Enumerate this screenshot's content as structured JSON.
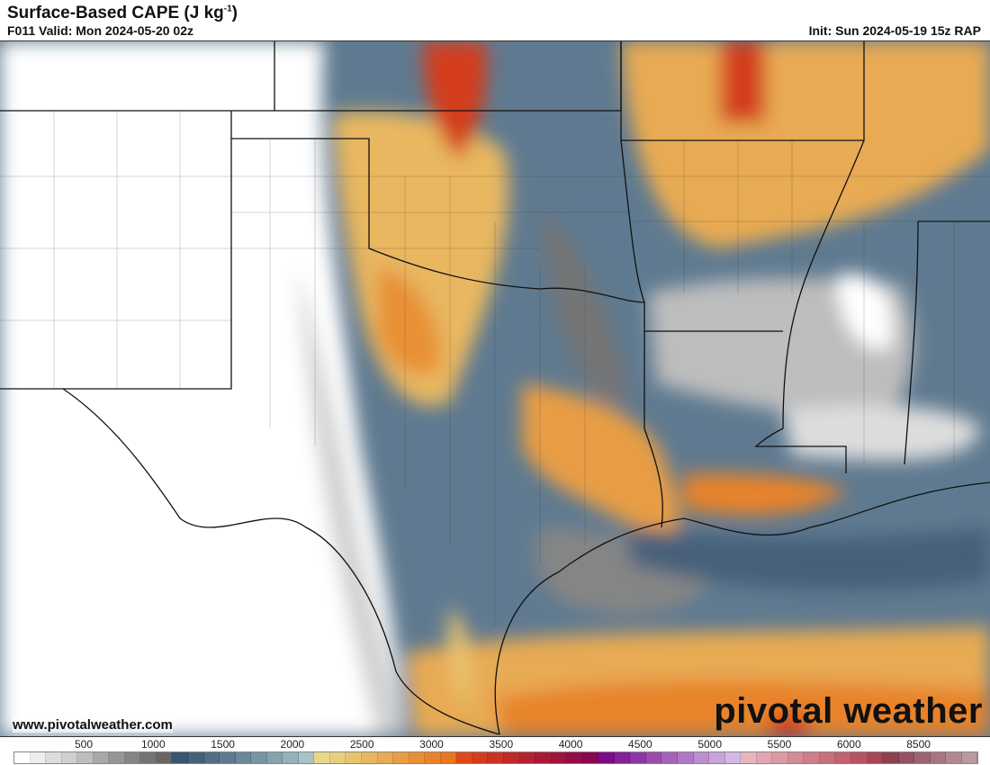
{
  "header": {
    "title": "Surface-Based CAPE (J kg",
    "title_exp": "-1",
    "title_close": ")",
    "valid": "F011 Valid: Mon 2024-05-20 02z",
    "init": "Init: Sun 2024-05-19 15z RAP"
  },
  "footer": {
    "website": "www.pivotalweather.com",
    "logo": "pivotal weather"
  },
  "colorbar": {
    "labels": [
      "500",
      "1000",
      "1500",
      "2000",
      "2500",
      "3000",
      "3500",
      "4000",
      "4500",
      "5000",
      "5500",
      "6000",
      "8500"
    ],
    "colors": [
      "#ffffff",
      "#eeeeee",
      "#dddddd",
      "#cfcfcf",
      "#bdbdbd",
      "#a8a8a8",
      "#969696",
      "#858585",
      "#747474",
      "#666666",
      "#3a5570",
      "#46617a",
      "#536d85",
      "#5f7a90",
      "#6b879a",
      "#7895a4",
      "#86a2ae",
      "#95b1b9",
      "#a6c3c8",
      "#e8d98a",
      "#e8cf7d",
      "#e8c36e",
      "#e8b760",
      "#e8aa52",
      "#e89d44",
      "#e89036",
      "#e8832a",
      "#e8781f",
      "#de4a16",
      "#d33c1c",
      "#c93323",
      "#bf2a2a",
      "#b42231",
      "#a91a38",
      "#9e1340",
      "#940c48",
      "#8a0650",
      "#7e0a8a",
      "#862098",
      "#8e36a4",
      "#9a4caf",
      "#a562ba",
      "#b078c5",
      "#bc8ed0",
      "#c8a4db",
      "#d4b9e6",
      "#e6b5c0",
      "#e0a7b2",
      "#da99a5",
      "#d48b98",
      "#ce7d8a",
      "#c86f7d",
      "#c26170",
      "#b85363",
      "#a84556",
      "#8c4050",
      "#955260",
      "#9e6470",
      "#a87680",
      "#b18890",
      "#ba9aa0"
    ]
  }
}
